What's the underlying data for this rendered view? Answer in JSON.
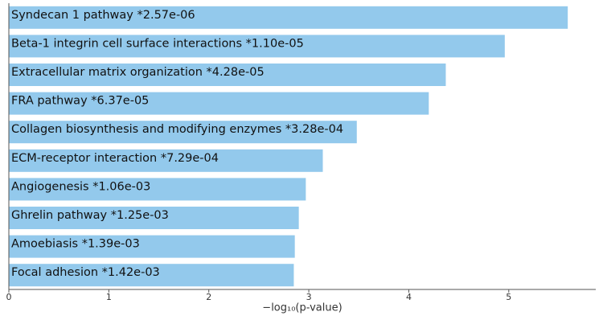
{
  "chart_data": {
    "type": "bar",
    "orientation": "horizontal",
    "xlabel": "−log₁₀(p-value)",
    "categories": [
      "Syndecan 1 pathway  *2.57e-06",
      "Beta-1 integrin cell surface interactions  *1.10e-05",
      "Extracellular matrix organization  *4.28e-05",
      "FRA pathway  *6.37e-05",
      "Collagen biosynthesis and modifying enzymes  *3.28e-04",
      "ECM-receptor interaction  *7.29e-04",
      "Angiogenesis  *1.06e-03",
      "Ghrelin pathway  *1.25e-03",
      "Amoebiasis  *1.39e-03",
      "Focal adhesion  *1.42e-03"
    ],
    "values": [
      5.59,
      4.96,
      4.37,
      4.2,
      3.48,
      3.14,
      2.97,
      2.9,
      2.86,
      2.85
    ],
    "color": "#93c9ec",
    "xlim": [
      0,
      5.87
    ],
    "xticks": [
      0,
      1,
      2,
      3,
      4,
      5
    ]
  }
}
